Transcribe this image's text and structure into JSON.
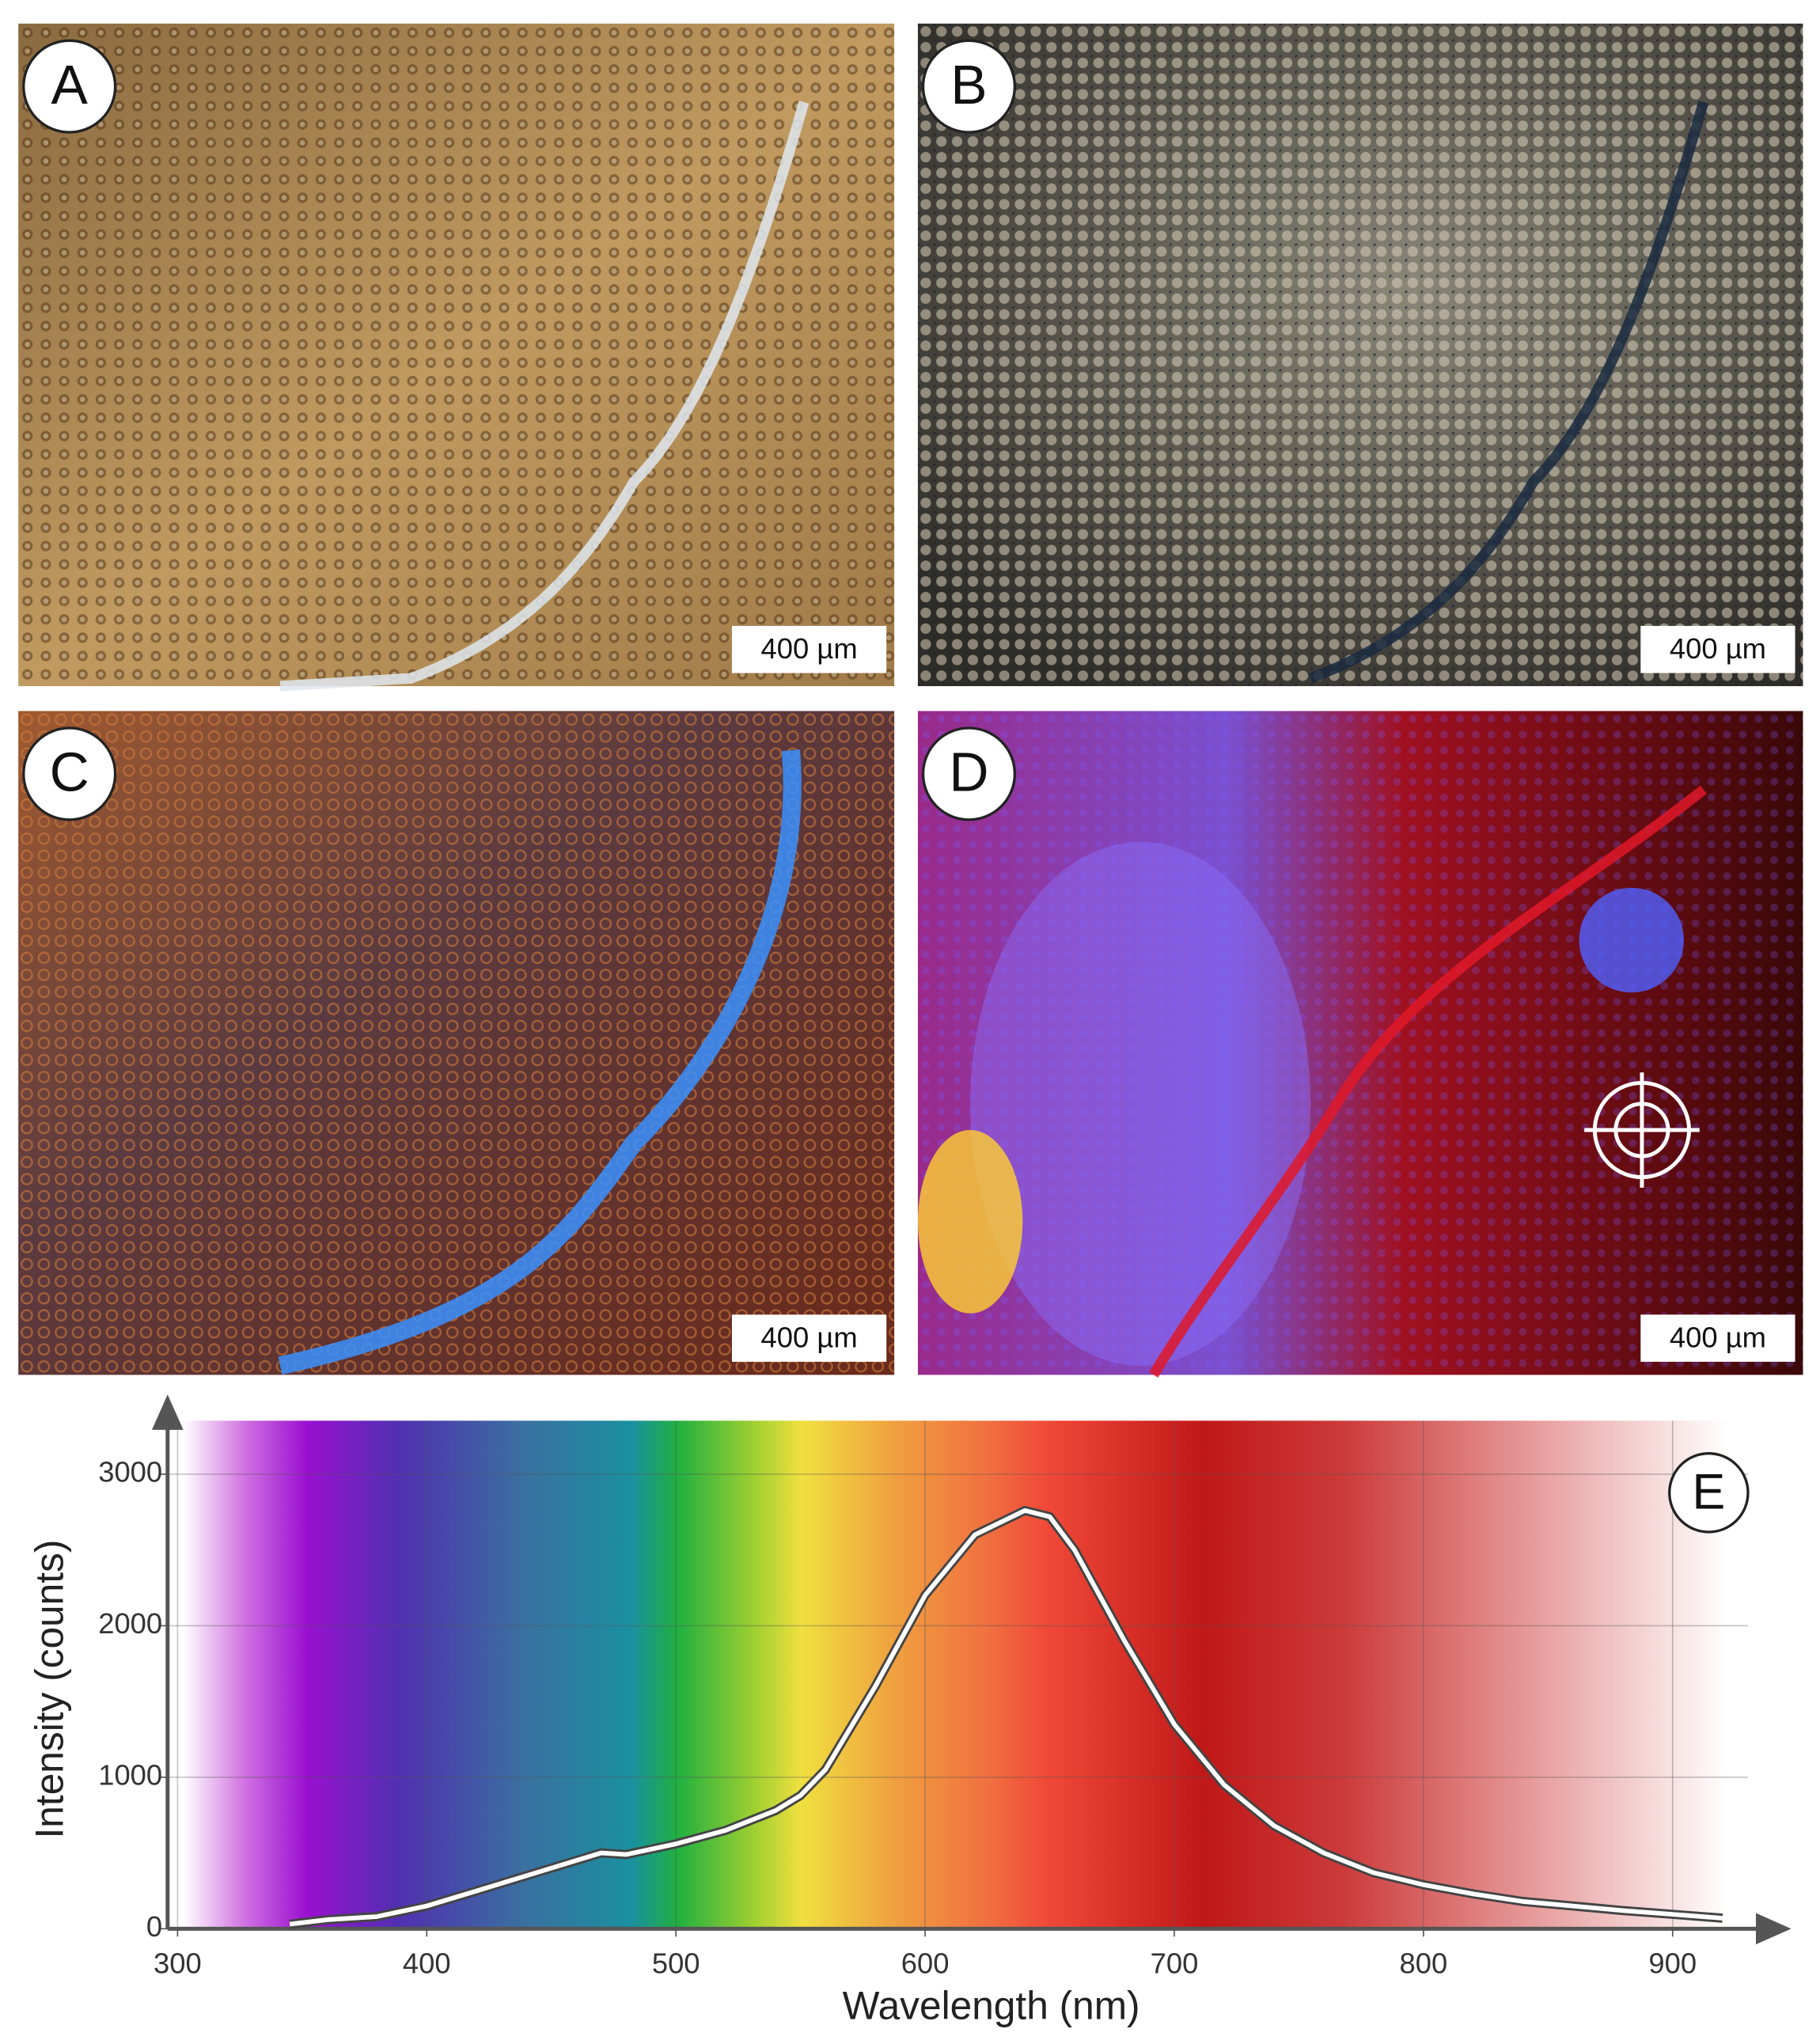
{
  "panels": [
    {
      "label": "A",
      "scale": "400 µm"
    },
    {
      "label": "B",
      "scale": "400 µm"
    },
    {
      "label": "C",
      "scale": "400 µm"
    },
    {
      "label": "D",
      "scale": "400 µm"
    }
  ],
  "chart_data": {
    "type": "line",
    "annotation": "E",
    "x_label": "Wavelength (nm)",
    "y_label": "Intensity (counts)",
    "x": [
      345,
      360,
      380,
      400,
      420,
      440,
      460,
      470,
      480,
      500,
      520,
      540,
      550,
      560,
      580,
      600,
      620,
      640,
      650,
      660,
      680,
      700,
      720,
      740,
      760,
      780,
      800,
      820,
      840,
      860,
      880,
      900,
      920
    ],
    "values": [
      30,
      60,
      80,
      150,
      250,
      350,
      450,
      500,
      490,
      560,
      650,
      780,
      880,
      1050,
      1600,
      2200,
      2600,
      2760,
      2720,
      2500,
      1900,
      1350,
      950,
      680,
      500,
      370,
      290,
      230,
      180,
      150,
      120,
      95,
      70
    ],
    "color": "#ffffff",
    "xlim": [
      296,
      946
    ],
    "ylim": [
      0,
      3500
    ],
    "xticks": [
      300,
      400,
      500,
      600,
      700,
      800,
      900
    ],
    "yticks": [
      0,
      1000,
      2000,
      3000
    ],
    "grid": true
  }
}
